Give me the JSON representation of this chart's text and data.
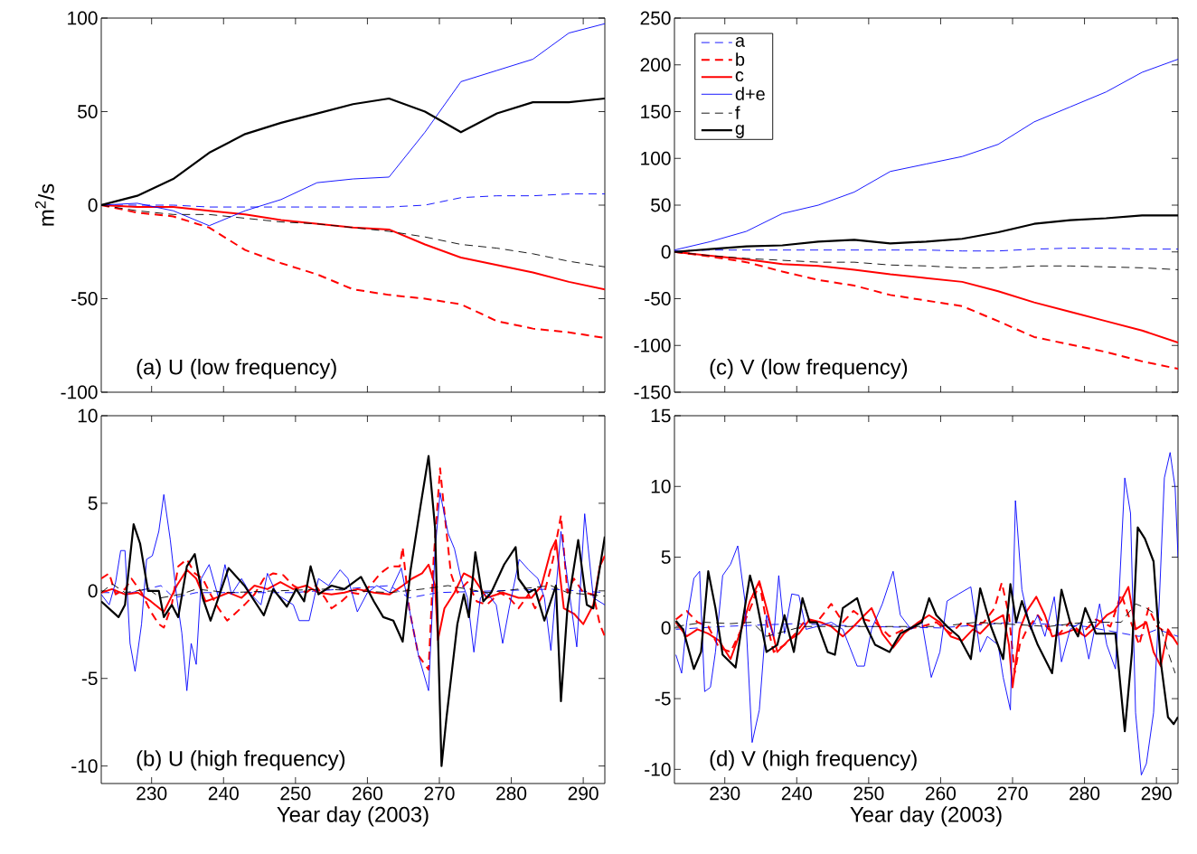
{
  "chart_data": [
    {
      "type": "line",
      "ylabel": "m$^{2}$/s",
      "annotations": [
        "(a) U (low frequency)"
      ],
      "xlim": [
        223,
        293
      ],
      "ylim": [
        -100,
        100
      ],
      "xticks": [
        230,
        240,
        250,
        260,
        270,
        280,
        290
      ],
      "yticks": [
        -100,
        -50,
        0,
        50,
        100
      ],
      "tick_labels": "y",
      "x": [
        223,
        228,
        233,
        238,
        243,
        248,
        253,
        258,
        263,
        268,
        273,
        278,
        283,
        288,
        293
      ],
      "series": [
        {
          "color": "#0000ff",
          "line_style": "dashed",
          "values": [
            0,
            0,
            0,
            -1,
            -1,
            -1,
            -1,
            -1,
            -1,
            0,
            4,
            5,
            5,
            6,
            6
          ]
        },
        {
          "color": "#ff0000",
          "line_style": "dashed",
          "values": [
            0,
            -4,
            -6,
            -12,
            -24,
            -31,
            -37,
            -45,
            -48,
            -50,
            -53,
            -62,
            -66,
            -68,
            -71
          ]
        },
        {
          "color": "#ff0000",
          "line_style": "solid",
          "values": [
            0,
            -1,
            -1,
            -3,
            -5,
            -8,
            -10,
            -12,
            -13,
            -21,
            -28,
            -32,
            -36,
            -41,
            -45
          ]
        },
        {
          "color": "#0000ff",
          "line_style": "solid",
          "values": [
            0,
            1,
            -3,
            -11,
            -3,
            3,
            12,
            14,
            15,
            39,
            66,
            72,
            78,
            92,
            97
          ]
        },
        {
          "color": "#000000",
          "line_style": "dashed",
          "values": [
            0,
            -3,
            -5,
            -5,
            -7,
            -9,
            -10,
            -12,
            -14,
            -17,
            -21,
            -23,
            -26,
            -30,
            -33
          ]
        },
        {
          "color": "#000000",
          "line_style": "solid",
          "values": [
            0,
            5,
            14,
            28,
            38,
            44,
            49,
            54,
            57,
            50,
            39,
            49,
            55,
            55,
            57
          ]
        }
      ]
    },
    {
      "type": "line",
      "annotations": [
        "(c) V (low frequency)"
      ],
      "xlim": [
        223,
        293
      ],
      "ylim": [
        -150,
        250
      ],
      "xticks": [
        230,
        240,
        250,
        260,
        270,
        280,
        290
      ],
      "yticks": [
        -150,
        -100,
        -50,
        0,
        50,
        100,
        150,
        200,
        250
      ],
      "tick_labels": "y",
      "legend": "top left",
      "x": [
        223,
        228,
        233,
        238,
        243,
        248,
        253,
        258,
        263,
        268,
        273,
        278,
        283,
        288,
        293
      ],
      "series": [
        {
          "name": "a",
          "color": "#0000ff",
          "line_style": "dashed",
          "values": [
            1,
            2,
            2,
            2,
            2,
            2,
            2,
            2,
            1,
            1,
            3,
            4,
            4,
            3,
            3
          ]
        },
        {
          "name": "b",
          "color": "#ff0000",
          "line_style": "dashed",
          "values": [
            0,
            -5,
            -11,
            -21,
            -30,
            -36,
            -46,
            -52,
            -58,
            -74,
            -91,
            -99,
            -107,
            -117,
            -125
          ]
        },
        {
          "name": "c",
          "color": "#ff0000",
          "line_style": "solid",
          "values": [
            0,
            -4,
            -8,
            -13,
            -15,
            -19,
            -24,
            -28,
            -32,
            -42,
            -54,
            -64,
            -74,
            -84,
            -97
          ]
        },
        {
          "name": "d+e",
          "color": "#0000ff",
          "line_style": "solid",
          "values": [
            2,
            11,
            22,
            41,
            50,
            64,
            86,
            94,
            102,
            115,
            139,
            155,
            171,
            192,
            206
          ]
        },
        {
          "name": "f",
          "color": "#000000",
          "line_style": "dashed",
          "values": [
            0,
            -4,
            -7,
            -9,
            -11,
            -11,
            -14,
            -15,
            -17,
            -17,
            -15,
            -15,
            -16,
            -17,
            -19
          ]
        },
        {
          "name": "g",
          "color": "#000000",
          "line_style": "solid",
          "values": [
            0,
            3,
            6,
            7,
            11,
            13,
            9,
            11,
            14,
            21,
            30,
            34,
            36,
            39,
            39
          ]
        }
      ]
    },
    {
      "type": "line",
      "xlabel": "Year day (2003)",
      "annotations": [
        "(b) U (high frequency)"
      ],
      "xlim": [
        223,
        293
      ],
      "ylim": [
        -11,
        10
      ],
      "xticks": [
        230,
        240,
        250,
        260,
        270,
        280,
        290
      ],
      "yticks": [
        -10,
        -5,
        0,
        5,
        10
      ],
      "series": [
        {
          "color": "#0000ff",
          "line_style": "dashed",
          "x": [
            223,
            227.2,
            231.3,
            233.1,
            236.2,
            249.7,
            263.1,
            265.8,
            269.8,
            285.5,
            293
          ],
          "values": [
            -0.1,
            -0.1,
            0.3,
            -0.4,
            -0.1,
            -0.1,
            0.3,
            -0.4,
            -0.1,
            0.1,
            -0.1
          ]
        },
        {
          "color": "#ff0000",
          "line_style": "dashed",
          "x": [
            223.0,
            224.1,
            225.0,
            226.3,
            227.2,
            228.6,
            229.9,
            231.0,
            231.7,
            232.8,
            233.7,
            234.9,
            236.0,
            237.1,
            238.2,
            239.3,
            240.5,
            241.6,
            242.9,
            244.3,
            245.6,
            246.9,
            248.3,
            249.7,
            251.5,
            252.8,
            254.1,
            255.0,
            256.4,
            257.7,
            259.1,
            260.4,
            261.8,
            263.1,
            264.5,
            264.9,
            265.8,
            267.1,
            268.5,
            269.2,
            270.1,
            270.7,
            271.6,
            272.5,
            273.9,
            275.2,
            276.6,
            278.4,
            279.7,
            281.0,
            282.4,
            283.3,
            284.6,
            285.8,
            286.9,
            287.8,
            288.7,
            290.0,
            291.4,
            292.3,
            293.0
          ],
          "values": [
            0.7,
            1.0,
            -0.2,
            0.1,
            0.7,
            -0.1,
            -1.2,
            -1.9,
            -2.1,
            -0.8,
            1.4,
            1.8,
            1.0,
            0.7,
            -0.2,
            -1.0,
            -1.7,
            -1.3,
            -0.8,
            -0.2,
            0.7,
            1.0,
            0.9,
            0.3,
            -0.1,
            0.3,
            -0.4,
            -1.0,
            -0.6,
            -0.1,
            -0.2,
            0.3,
            1.0,
            1.4,
            1.4,
            2.5,
            -1.0,
            -3.7,
            -4.5,
            1.8,
            7.0,
            4.5,
            1.0,
            -0.1,
            0.5,
            -0.6,
            -0.8,
            -0.1,
            -0.4,
            -1.0,
            -0.2,
            -1.0,
            -0.1,
            1.8,
            4.3,
            -0.1,
            0.7,
            -0.1,
            -0.2,
            -1.9,
            -2.6
          ]
        },
        {
          "color": "#ff0000",
          "line_style": "solid",
          "x": [
            223.0,
            224.5,
            226.3,
            228.1,
            229.9,
            231.7,
            233.5,
            234.9,
            236.2,
            237.5,
            238.9,
            240.7,
            242.5,
            244.3,
            246.1,
            247.9,
            249.7,
            251.5,
            253.2,
            255.0,
            256.8,
            258.6,
            260.9,
            263.1,
            264.9,
            266.2,
            267.6,
            268.5,
            269.4,
            269.8,
            270.7,
            272.1,
            273.4,
            274.8,
            276.6,
            278.8,
            281.0,
            282.8,
            284.2,
            285.5,
            286.2,
            287.3,
            288.7,
            290.0,
            291.4,
            292.3,
            293.0
          ],
          "values": [
            -0.1,
            0.1,
            -0.2,
            -0.1,
            -0.6,
            -1.2,
            0.3,
            1.2,
            0.7,
            -0.6,
            -0.4,
            -0.1,
            -0.4,
            0.3,
            0.1,
            0.5,
            0.1,
            0.3,
            -0.1,
            -0.2,
            -0.1,
            0.1,
            -0.1,
            -0.2,
            0.3,
            0.7,
            1.0,
            1.5,
            0.3,
            -2.8,
            -1.0,
            -0.1,
            1.0,
            0.7,
            -0.4,
            -0.1,
            -0.4,
            -0.4,
            0.3,
            2.3,
            2.9,
            -1.0,
            -1.3,
            -1.9,
            -0.8,
            1.4,
            2.0
          ]
        },
        {
          "color": "#0000ff",
          "line_style": "solid",
          "x": [
            223.0,
            224.1,
            225.0,
            225.7,
            226.3,
            227.0,
            227.7,
            228.6,
            229.3,
            230.1,
            231.0,
            231.7,
            232.6,
            233.5,
            234.2,
            234.9,
            235.5,
            236.2,
            236.9,
            238.0,
            239.3,
            240.2,
            241.1,
            242.5,
            243.8,
            245.2,
            246.1,
            247.4,
            249.7,
            250.5,
            251.9,
            253.2,
            254.6,
            256.2,
            257.3,
            258.6,
            260.0,
            261.3,
            263.1,
            264.7,
            265.8,
            267.1,
            268.5,
            269.4,
            270.1,
            271.2,
            272.1,
            273.0,
            273.9,
            274.8,
            275.7,
            276.6,
            277.9,
            278.8,
            279.7,
            281.1,
            282.4,
            283.7,
            284.6,
            285.5,
            286.9,
            287.8,
            289.1,
            290.2,
            291.4,
            293.0
          ],
          "values": [
            -0.2,
            -0.8,
            0.5,
            2.3,
            2.3,
            -3,
            -4.6,
            -1.9,
            1.8,
            2,
            3.4,
            5.5,
            2.9,
            -0.4,
            -2.4,
            -5.7,
            -3,
            -4.2,
            0.7,
            1.5,
            -0.4,
            1.5,
            -0.2,
            0.7,
            -0.2,
            -0.8,
            1.0,
            -0.2,
            -0.8,
            -1.7,
            -1.7,
            0.7,
            0.3,
            1.2,
            0.7,
            -1.2,
            -0.1,
            0.3,
            -0.1,
            1.3,
            -1,
            -3.7,
            -5.7,
            2.3,
            5.6,
            3.3,
            2.4,
            0.7,
            -0.4,
            -3.5,
            -0.4,
            -0.1,
            -0.8,
            -3,
            -1,
            1.8,
            1.2,
            0.7,
            -0.4,
            -3.4,
            3.4,
            0.7,
            -3.2,
            4.4,
            -0.4,
            -0.8
          ]
        },
        {
          "color": "#000000",
          "line_style": "dashed",
          "x": [
            223,
            224.5,
            226.3,
            229.5,
            231.3,
            234,
            236.2,
            240.7,
            254.1,
            263.1,
            267.6,
            271.2,
            276.6,
            281,
            285.5,
            287.8,
            293
          ],
          "values": [
            -0.1,
            0.4,
            -0.1,
            0.1,
            -0.4,
            -0.2,
            0.1,
            -0.1,
            0.1,
            -0.1,
            0.1,
            0.3,
            -0.1,
            0.1,
            0.3,
            -0.1,
            -0.3
          ]
        },
        {
          "color": "#000000",
          "line_style": "solid",
          "x": [
            223.0,
            225.4,
            226.3,
            227.5,
            228.4,
            229.5,
            231.0,
            231.7,
            232.8,
            233.7,
            234.9,
            236.0,
            237.1,
            238.2,
            240.7,
            242.9,
            245.6,
            246.9,
            248.8,
            250.1,
            251.2,
            252.1,
            253.2,
            255.0,
            256.8,
            259.1,
            260.9,
            262.2,
            263.6,
            264.9,
            266.0,
            267.4,
            268.5,
            269.4,
            270.3,
            271.0,
            272.5,
            273.4,
            274.1,
            275.0,
            276.1,
            277.2,
            279.0,
            280.6,
            281.0,
            282.4,
            283.3,
            284.6,
            286.2,
            286.9,
            287.8,
            289.3,
            290.5,
            291.4,
            293.0
          ],
          "values": [
            -0.6,
            -1.5,
            -0.8,
            3.8,
            2.7,
            0,
            0,
            -1.5,
            -0.8,
            -1.5,
            1.4,
            2.1,
            -0.4,
            -1.7,
            1.3,
            0.3,
            -1.4,
            0.1,
            -0.9,
            0.1,
            -0.6,
            1.4,
            -0.2,
            0.3,
            0.1,
            0.8,
            -0.6,
            -1.5,
            -1.7,
            -2.9,
            1.2,
            4.9,
            7.7,
            3.6,
            -10,
            -7.2,
            -1.9,
            -0.2,
            -1.5,
            2.2,
            -0.6,
            -0.1,
            1.5,
            2.5,
            0.7,
            -0.1,
            0.1,
            -1.7,
            0.3,
            -6.3,
            -1,
            2.9,
            -0.8,
            -1,
            3.1
          ]
        }
      ]
    },
    {
      "type": "line",
      "xlabel": "Year day (2003)",
      "annotations": [
        "(d) V (high frequency)"
      ],
      "xlim": [
        223,
        293
      ],
      "ylim": [
        -11,
        15
      ],
      "xticks": [
        230,
        240,
        250,
        260,
        270,
        280,
        290
      ],
      "yticks": [
        -10,
        -5,
        0,
        5,
        10,
        15
      ],
      "series": [
        {
          "color": "#0000ff",
          "line_style": "dashed",
          "x": [
            223.2,
            229.7,
            239.8,
            249.9,
            259.9,
            270.0,
            280.1,
            287.6,
            290.1,
            293.0
          ],
          "values": [
            -0.1,
            0.1,
            0.3,
            0.1,
            0,
            0.4,
            0.1,
            -0.6,
            -0.1,
            -0.6
          ]
        },
        {
          "color": "#ff0000",
          "line_style": "dashed",
          "x": [
            223.2,
            224.7,
            226.2,
            227.7,
            229.2,
            230.8,
            232.3,
            233.8,
            234.8,
            235.8,
            236.8,
            238.3,
            239.8,
            241.3,
            242.8,
            244.8,
            246.4,
            247.9,
            249.4,
            250.9,
            252.9,
            254.9,
            257.4,
            259.4,
            261.4,
            263.0,
            264.5,
            266.0,
            267.5,
            268.5,
            269.5,
            270.3,
            271.0,
            272.0,
            273.5,
            275.0,
            276.5,
            278.0,
            279.6,
            281.6,
            283.6,
            285.1,
            286.1,
            287.6,
            288.9,
            290.1,
            291.6,
            293.0
          ],
          "values": [
            0.6,
            1.2,
            0.4,
            0.1,
            -1.4,
            -1.7,
            -0.1,
            1.7,
            3.2,
            0.4,
            -1.7,
            -1.2,
            -0.4,
            0.6,
            0.4,
            1.7,
            0.4,
            1.2,
            0.6,
            0.4,
            -0.6,
            -0.1,
            0.1,
            0.4,
            -0.4,
            0.4,
            0.1,
            0.4,
            1.4,
            3.2,
            0.9,
            -3.2,
            -1.2,
            -0.1,
            0.9,
            -0.1,
            -0.4,
            0.4,
            -0.4,
            0.6,
            0.1,
            2.4,
            0.9,
            -1.2,
            1.4,
            0.1,
            -0.4,
            -0.9
          ]
        },
        {
          "color": "#ff0000",
          "line_style": "solid",
          "x": [
            223.2,
            224.7,
            226.2,
            227.7,
            229.2,
            230.8,
            232.3,
            233.5,
            234.8,
            235.8,
            237.3,
            238.8,
            240.3,
            241.8,
            243.3,
            244.8,
            246.4,
            247.9,
            249.4,
            250.4,
            251.9,
            253.4,
            254.9,
            256.9,
            258.4,
            259.9,
            261.4,
            263.0,
            264.5,
            265.5,
            267.0,
            268.7,
            269.5,
            270.0,
            271.0,
            272.0,
            273.3,
            274.5,
            275.5,
            277.0,
            278.6,
            280.1,
            281.6,
            283.1,
            284.1,
            285.1,
            286.1,
            287.1,
            288.6,
            289.6,
            290.6,
            291.6,
            293.0
          ],
          "values": [
            0.4,
            -0.6,
            -0.1,
            -0.4,
            -0.9,
            -2.2,
            -0.1,
            1.9,
            3.3,
            1.4,
            -1.7,
            -0.9,
            -0.4,
            0.6,
            0.4,
            0.1,
            -0.6,
            0.1,
            0.9,
            1.4,
            -0.4,
            -1.4,
            -0.4,
            0.4,
            0.9,
            0.4,
            -0.6,
            -0.9,
            -0.1,
            -0.4,
            0.4,
            0.9,
            -1.2,
            -4.2,
            -0.1,
            1.2,
            2.2,
            0.9,
            -0.6,
            -0.4,
            -0.1,
            -0.6,
            0.1,
            0.9,
            1.2,
            1.9,
            2.9,
            -0.1,
            0.4,
            -1.7,
            -2.7,
            -0.1,
            -1.2
          ]
        },
        {
          "color": "#0000ff",
          "line_style": "solid",
          "x": [
            223.2,
            224.0,
            224.7,
            225.7,
            226.5,
            227.2,
            228.0,
            228.7,
            229.7,
            230.8,
            231.8,
            232.8,
            233.8,
            234.8,
            235.8,
            236.8,
            237.5,
            238.3,
            239.3,
            240.3,
            241.3,
            242.8,
            244.8,
            246.4,
            247.4,
            248.4,
            249.4,
            250.4,
            251.9,
            253.4,
            254.4,
            255.9,
            257.4,
            258.7,
            259.9,
            260.9,
            262.5,
            264.2,
            265.5,
            266.5,
            268.0,
            268.7,
            269.7,
            270.4,
            271.3,
            272.5,
            273.5,
            274.5,
            275.8,
            276.8,
            278.0,
            279.6,
            280.6,
            282.1,
            283.1,
            284.3,
            285.6,
            286.4,
            287.1,
            287.9,
            288.6,
            289.6,
            290.4,
            291.1,
            291.9,
            292.6,
            293.0
          ],
          "values": [
            -1.9,
            -3.2,
            0.4,
            3.5,
            4.0,
            -4.5,
            -4.2,
            -1.7,
            3.7,
            4.5,
            5.8,
            1.9,
            -8.1,
            -5.8,
            0.9,
            -0.6,
            3.7,
            -0.4,
            2.4,
            2.3,
            -0.1,
            0.1,
            0.4,
            -0.1,
            -1.4,
            -2.7,
            -2.7,
            -0.1,
            1.7,
            4.0,
            0.9,
            -0.1,
            0.4,
            -3.5,
            -1.7,
            1.9,
            2.4,
            2.9,
            -1.7,
            -0.6,
            -1.2,
            -3.5,
            -5.8,
            9.0,
            2.7,
            -0.1,
            0.9,
            -0.6,
            2.2,
            -2.4,
            -0.1,
            0.4,
            -2.2,
            1.7,
            -1.2,
            -2.9,
            10.6,
            8.1,
            -6.0,
            -10.4,
            -9.6,
            -6.0,
            1.9,
            10.6,
            12.4,
            9.9,
            5.0
          ]
        },
        {
          "color": "#000000",
          "line_style": "dashed",
          "x": [
            223.2,
            227.2,
            230.8,
            233.8,
            235.8,
            240.8,
            249.9,
            259.9,
            265.0,
            275.0,
            280.1,
            285.1,
            287.1,
            288.6,
            290.1,
            291.6,
            292.6
          ],
          "values": [
            0.1,
            0.4,
            0.3,
            0.4,
            -0.6,
            0.1,
            0.1,
            0.1,
            0.4,
            0.1,
            0.4,
            0.4,
            1.7,
            1.4,
            0.9,
            -1.7,
            -3.2
          ]
        },
        {
          "color": "#000000",
          "line_style": "solid",
          "x": [
            223.2,
            224.2,
            225.7,
            226.7,
            227.7,
            228.7,
            229.7,
            231.5,
            232.3,
            233.5,
            234.3,
            235.8,
            237.3,
            238.3,
            239.6,
            240.8,
            241.8,
            242.8,
            244.3,
            245.3,
            246.4,
            248.4,
            249.4,
            250.9,
            252.9,
            254.4,
            257.4,
            258.4,
            259.4,
            260.9,
            262.5,
            264.2,
            265.5,
            267.0,
            268.7,
            269.7,
            270.5,
            271.3,
            272.5,
            273.5,
            275.5,
            276.8,
            278.0,
            279.1,
            280.1,
            281.6,
            284.3,
            285.6,
            286.6,
            287.4,
            288.4,
            289.6,
            290.6,
            291.6,
            292.4,
            293.0
          ],
          "values": [
            0.5,
            -0.1,
            -2.9,
            -1.7,
            4.0,
            1.4,
            -1.9,
            -2.8,
            -0.1,
            3.7,
            2.2,
            -1.7,
            -1.2,
            0.9,
            -1.7,
            2.1,
            0.4,
            0.4,
            -1.7,
            -1.9,
            1.4,
            2.1,
            0.4,
            -1.2,
            -1.7,
            -0.4,
            0.4,
            2.1,
            0.9,
            0.1,
            -0.6,
            -2.2,
            2.8,
            0.1,
            -2.2,
            3.1,
            0.4,
            1.9,
            0.1,
            -1.2,
            -3.2,
            2.7,
            0.4,
            -0.6,
            1.4,
            -0.4,
            -0.4,
            -7.3,
            -1.7,
            7.1,
            6.3,
            4.7,
            -2.4,
            -6.3,
            -6.8,
            -6.3
          ]
        }
      ]
    }
  ]
}
